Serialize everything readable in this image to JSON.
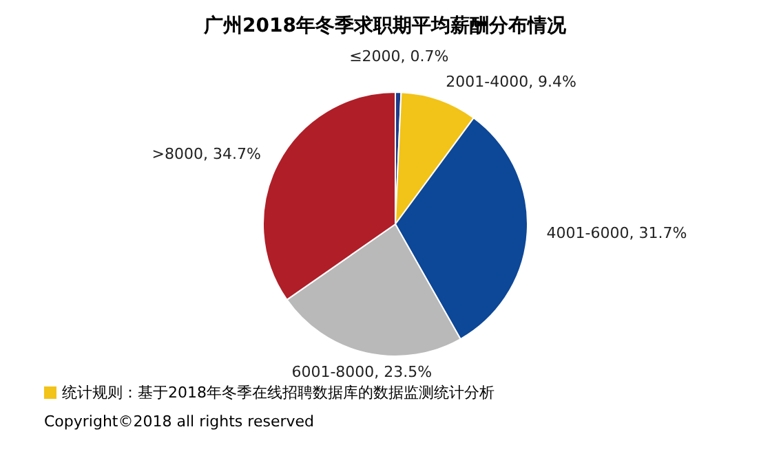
{
  "chart_data": {
    "type": "pie",
    "title": "广州2018年冬季求职期平均薪酬分布情况",
    "categories": [
      null,
      null,
      null,
      null,
      null
    ],
    "values": [
      0.7,
      9.4,
      31.7,
      23.5,
      34.7
    ],
    "colors": [
      "#1f3c8c",
      "#f2c318",
      "#0d4797",
      "#b9b9b9",
      "#b01e28"
    ],
    "value_labels": [
      "≤2000, 0.7%",
      "2001-4000, 9.4%",
      "4001-6000, 31.7%",
      "6001-8000, 23.5%",
      ">8000, 34.7%"
    ],
    "legend": false,
    "annotations": [
      "统计规则：基于2018年冬季在线招聘数据库的数据监测统计分析",
      "Copyright©2018 all rights reserved"
    ]
  }
}
